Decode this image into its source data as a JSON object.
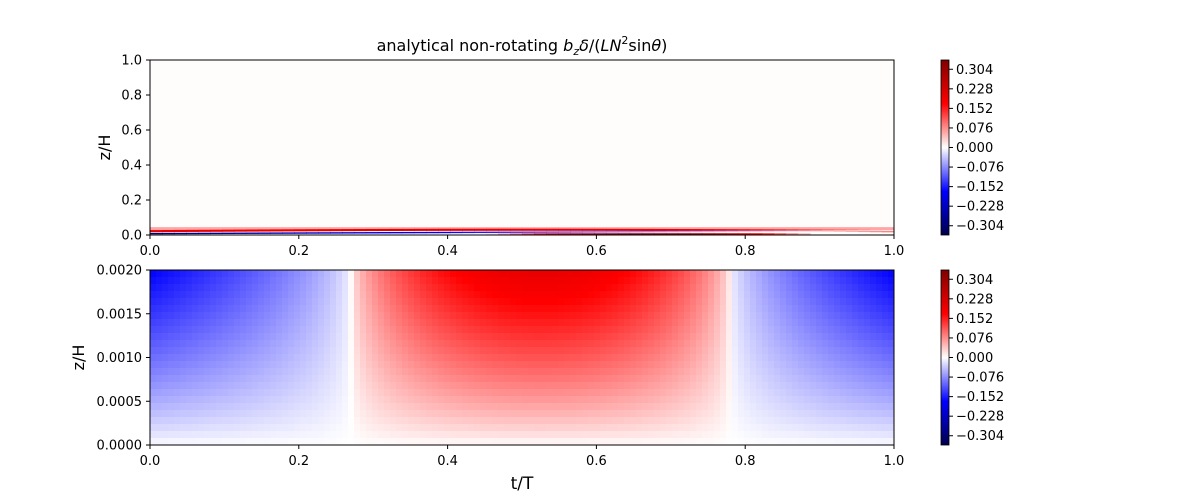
{
  "chart_data": [
    {
      "type": "heatmap",
      "title": "analytical non-rotating b_zδ/(LN²sinθ)",
      "title_parts": {
        "pre": "analytical non-rotating ",
        "b": "b",
        "z": "z",
        "delta": "δ",
        "slash": "/(",
        "L": "L",
        "N": "N",
        "sup2": "2",
        "sin": "sin",
        "theta": "θ",
        "close": ")"
      },
      "xlabel": "",
      "ylabel": "z/H",
      "xlim": [
        0.0,
        1.0
      ],
      "ylim": [
        0.0,
        1.0
      ],
      "xticks": [
        0.0,
        0.2,
        0.4,
        0.6,
        0.8,
        1.0
      ],
      "yticks": [
        0.0,
        0.2,
        0.4,
        0.6,
        0.8,
        1.0
      ],
      "xtick_labels": [
        "0.0",
        "0.2",
        "0.4",
        "0.6",
        "0.8",
        "1.0"
      ],
      "ytick_labels": [
        "0.0",
        "0.2",
        "0.4",
        "0.6",
        "0.8",
        "1.0"
      ],
      "colormap": "seismic",
      "colorbar_ticks": [
        0.304,
        0.228,
        0.152,
        0.076,
        0.0,
        -0.076,
        -0.152,
        -0.228,
        -0.304
      ],
      "colorbar_labels": [
        "0.304",
        "0.228",
        "0.152",
        "0.076",
        "0.000",
        "−0.076",
        "−0.152",
        "−0.228",
        "−0.304"
      ],
      "value_range": [
        -0.34,
        0.34
      ],
      "description_of_field": "thin boundary layer near z/H=0; red band near z/H≈0.03, blue band beneath that tilts across time"
    },
    {
      "type": "heatmap",
      "title": "",
      "xlabel": "t/T",
      "ylabel": "z/H",
      "xlim": [
        0.0,
        1.0
      ],
      "ylim": [
        0.0,
        0.002
      ],
      "xticks": [
        0.0,
        0.2,
        0.4,
        0.6,
        0.8,
        1.0
      ],
      "yticks": [
        0.0,
        0.0005,
        0.001,
        0.0015,
        0.002
      ],
      "xtick_labels": [
        "0.0",
        "0.2",
        "0.4",
        "0.6",
        "0.8",
        "1.0"
      ],
      "ytick_labels": [
        "0.0000",
        "0.0005",
        "0.0010",
        "0.0015",
        "0.0020"
      ],
      "colormap": "seismic",
      "colorbar_ticks": [
        0.304,
        0.228,
        0.152,
        0.076,
        0.0,
        -0.076,
        -0.152,
        -0.228,
        -0.304
      ],
      "colorbar_labels": [
        "0.304",
        "0.228",
        "0.152",
        "0.076",
        "0.000",
        "−0.076",
        "−0.152",
        "−0.228",
        "−0.304"
      ],
      "value_range": [
        -0.34,
        0.34
      ],
      "field_peaks": {
        "red_max_at_t": 0.53,
        "red_max_value": 0.2,
        "blue_min_at_t": [
          0.0,
          1.0
        ],
        "blue_min_value": -0.17,
        "zero_crossings_t": [
          0.27,
          0.78
        ]
      }
    }
  ]
}
